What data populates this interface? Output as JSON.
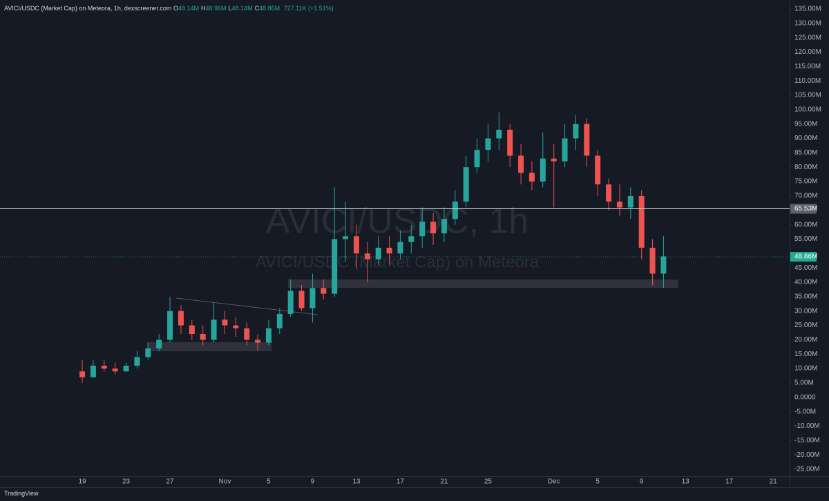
{
  "header": {
    "symbol": "AVICI/USDC (Market Cap) on Meteora, 1h, dexscreener.com",
    "ohlc": [
      {
        "key": "O",
        "value": "48.14M"
      },
      {
        "key": "H",
        "value": "48.96M"
      },
      {
        "key": "L",
        "value": "48.14M"
      },
      {
        "key": "C",
        "value": "48.86M"
      }
    ],
    "volume": "727.11K",
    "change": "(+1.51%)"
  },
  "footer": {
    "brand": "TradingView"
  },
  "chart_data": {
    "type": "candlestick",
    "watermark": "AVICI/USDC, 1h",
    "watermark_sub": "AVICI/USDC (Market Cap) on Meteora",
    "up_color": "#26a69a",
    "down_color": "#ef5350",
    "categories": [
      null,
      null,
      null,
      null,
      null,
      null,
      null,
      "19",
      null,
      null,
      null,
      "23",
      null,
      null,
      null,
      "27",
      null,
      null,
      null,
      null,
      "Nov",
      null,
      null,
      null,
      "5",
      null,
      null,
      null,
      "9",
      null,
      null,
      null,
      "13",
      null,
      null,
      null,
      "17",
      null,
      null,
      null,
      "21",
      null,
      null,
      null,
      "25",
      null,
      null,
      null,
      null,
      null,
      "Dec",
      null,
      null,
      null,
      "5",
      null,
      null,
      null,
      "9",
      null,
      null,
      null,
      "13",
      null,
      null,
      null,
      "17",
      null,
      null,
      null,
      "21",
      null
    ],
    "open": [
      null,
      null,
      null,
      null,
      null,
      null,
      null,
      9,
      7,
      11,
      10,
      9,
      11,
      14,
      17,
      20,
      30,
      25,
      22,
      20,
      27,
      25,
      24,
      20,
      19,
      24,
      29,
      37,
      31,
      38,
      36,
      55,
      56,
      50,
      48,
      52,
      50,
      54,
      56,
      61,
      57,
      62,
      68,
      80,
      86,
      90,
      93,
      84,
      78,
      75,
      83,
      82,
      90,
      95,
      84,
      74,
      68,
      66,
      70,
      52,
      43,
      null,
      null,
      null,
      null,
      null,
      null,
      null,
      null,
      null,
      null,
      null
    ],
    "high": [
      null,
      null,
      null,
      null,
      null,
      null,
      null,
      13,
      13,
      13,
      12,
      12,
      16,
      19,
      22,
      35,
      32,
      27,
      25,
      33,
      30,
      28,
      26,
      22,
      27,
      31,
      41,
      39,
      43,
      41,
      73,
      68,
      60,
      54,
      56,
      56,
      58,
      60,
      66,
      64,
      66,
      72,
      84,
      90,
      95,
      99,
      95,
      88,
      82,
      92,
      88,
      95,
      98,
      97,
      86,
      76,
      74,
      73,
      72,
      55,
      56,
      null,
      null,
      null,
      null,
      null,
      null,
      null,
      null,
      null,
      null,
      null
    ],
    "low": [
      null,
      null,
      null,
      null,
      null,
      null,
      null,
      5,
      7,
      9,
      8,
      9,
      10,
      13,
      16,
      19,
      22,
      20,
      18,
      19,
      22,
      21,
      18,
      16,
      18,
      22,
      28,
      30,
      26,
      34,
      35,
      47,
      45,
      40,
      46,
      46,
      48,
      50,
      52,
      53,
      54,
      60,
      66,
      78,
      82,
      86,
      80,
      74,
      72,
      73,
      66,
      80,
      86,
      80,
      70,
      65,
      63,
      62,
      48,
      39,
      38,
      null,
      null,
      null,
      null,
      null,
      null,
      null,
      null,
      null,
      null,
      null
    ],
    "close": [
      null,
      null,
      null,
      null,
      null,
      null,
      null,
      7,
      11,
      10,
      9,
      11,
      14,
      17,
      20,
      30,
      25,
      22,
      20,
      27,
      25,
      24,
      20,
      19,
      24,
      29,
      37,
      31,
      38,
      36,
      55,
      56,
      50,
      48,
      52,
      50,
      54,
      56,
      61,
      57,
      62,
      68,
      80,
      86,
      90,
      93,
      84,
      78,
      75,
      83,
      82,
      90,
      95,
      84,
      74,
      68,
      66,
      70,
      52,
      43,
      49,
      null,
      null,
      null,
      null,
      null,
      null,
      null,
      null,
      null,
      null,
      null
    ],
    "ylim": [
      -27.4,
      138.1
    ],
    "yticks": [
      {
        "value": 135,
        "label": "135.00M"
      },
      {
        "value": 130,
        "label": "130.00M"
      },
      {
        "value": 125,
        "label": "125.00M"
      },
      {
        "value": 120,
        "label": "120.00M"
      },
      {
        "value": 115,
        "label": "115.00M"
      },
      {
        "value": 110,
        "label": "110.00M"
      },
      {
        "value": 105,
        "label": "105.00M"
      },
      {
        "value": 100,
        "label": "100.00M"
      },
      {
        "value": 95,
        "label": "95.00M"
      },
      {
        "value": 90,
        "label": "90.00M"
      },
      {
        "value": 85,
        "label": "85.00M"
      },
      {
        "value": 80,
        "label": "80.00M"
      },
      {
        "value": 75,
        "label": "75.00M"
      },
      {
        "value": 70,
        "label": "70.00M"
      },
      {
        "value": 60,
        "label": "60.00M"
      },
      {
        "value": 55,
        "label": "55.00M"
      },
      {
        "value": 45,
        "label": "45.00M"
      },
      {
        "value": 40,
        "label": "40.00M"
      },
      {
        "value": 35,
        "label": "35.00M"
      },
      {
        "value": 30,
        "label": "30.00M"
      },
      {
        "value": 25,
        "label": "25.00M"
      },
      {
        "value": 20,
        "label": "20.00M"
      },
      {
        "value": 15,
        "label": "15.00M"
      },
      {
        "value": 10,
        "label": "10.00M"
      },
      {
        "value": 5,
        "label": "5.00M"
      },
      {
        "value": 0,
        "label": "0.0000"
      },
      {
        "value": -5,
        "label": "-5.00M"
      },
      {
        "value": -10,
        "label": "-10.00M"
      },
      {
        "value": -15,
        "label": "-15.00M"
      },
      {
        "value": -20,
        "label": "-20.00M"
      },
      {
        "value": -25,
        "label": "-25.00M"
      }
    ],
    "price_line": {
      "value": 65.53,
      "label": "65.53M",
      "color": "#d1d4dc"
    },
    "last_price": {
      "value": 48.86,
      "label": "48.86M",
      "color": "#22ab94"
    }
  }
}
